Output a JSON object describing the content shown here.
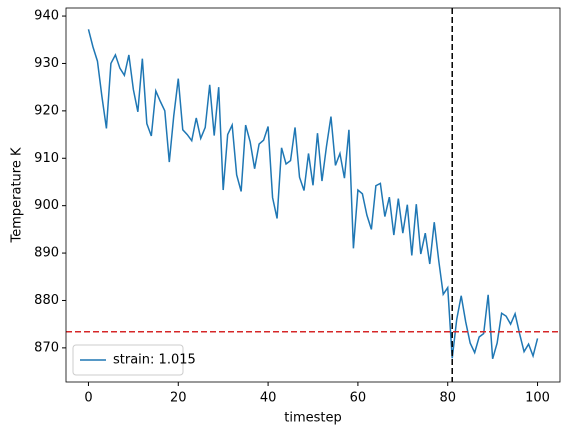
{
  "chart_data": {
    "type": "line",
    "xlabel": "timestep",
    "ylabel": "Temperature K",
    "x": [
      0,
      1,
      2,
      3,
      4,
      5,
      6,
      7,
      8,
      9,
      10,
      11,
      12,
      13,
      14,
      15,
      16,
      17,
      18,
      19,
      20,
      21,
      22,
      23,
      24,
      25,
      26,
      27,
      28,
      29,
      30,
      31,
      32,
      33,
      34,
      35,
      36,
      37,
      38,
      39,
      40,
      41,
      42,
      43,
      44,
      45,
      46,
      47,
      48,
      49,
      50,
      51,
      52,
      53,
      54,
      55,
      56,
      57,
      58,
      59,
      60,
      61,
      62,
      63,
      64,
      65,
      66,
      67,
      68,
      69,
      70,
      71,
      72,
      73,
      74,
      75,
      76,
      77,
      78,
      79,
      80,
      81,
      82,
      83,
      84,
      85,
      86,
      87,
      88,
      89,
      90,
      91,
      92,
      93,
      94,
      95,
      96,
      97,
      98,
      99,
      100
    ],
    "series": [
      {
        "name": "strain: 1.015",
        "color": "#1f77b4",
        "values": [
          937.2,
          933.5,
          930.5,
          923,
          916.3,
          930,
          931.8,
          929,
          927.5,
          931.8,
          924.5,
          919.8,
          931,
          917.3,
          914.7,
          924.2,
          922,
          920,
          909.2,
          919,
          926.8,
          916,
          915,
          913.7,
          918.5,
          914.2,
          916.5,
          925.5,
          914.8,
          925,
          903.3,
          915,
          917,
          906.5,
          903,
          917,
          913.5,
          907.8,
          913,
          913.8,
          916.7,
          901.7,
          897.3,
          912.2,
          908.8,
          909.5,
          916.5,
          906,
          903.2,
          911,
          904.3,
          915.3,
          905.2,
          912.5,
          918.8,
          908.5,
          911,
          905.8,
          916,
          891,
          903.3,
          902.5,
          898,
          895,
          904.2,
          904.7,
          897.7,
          901.8,
          893.8,
          901.5,
          894.2,
          900.2,
          889.5,
          900.3,
          889.8,
          894.2,
          887.7,
          896.5,
          888.4,
          881.3,
          882.7,
          867.8,
          876,
          881,
          875.5,
          871,
          869,
          872.3,
          873,
          881.2,
          867.7,
          871,
          877.3,
          876.7,
          875,
          877.2,
          873,
          869.2,
          870.8,
          868.3,
          872
        ]
      }
    ],
    "vlines": [
      {
        "x": 81,
        "color": "#000000"
      }
    ],
    "hlines": [
      {
        "y": 873.4,
        "color": "#d62728"
      }
    ],
    "xlim": [
      -5,
      105
    ],
    "ylim": [
      862.8,
      941.7
    ],
    "xticks": [
      0,
      20,
      40,
      60,
      80,
      100
    ],
    "yticks": [
      870,
      880,
      890,
      900,
      910,
      920,
      930,
      940
    ],
    "legend": "lower left"
  }
}
